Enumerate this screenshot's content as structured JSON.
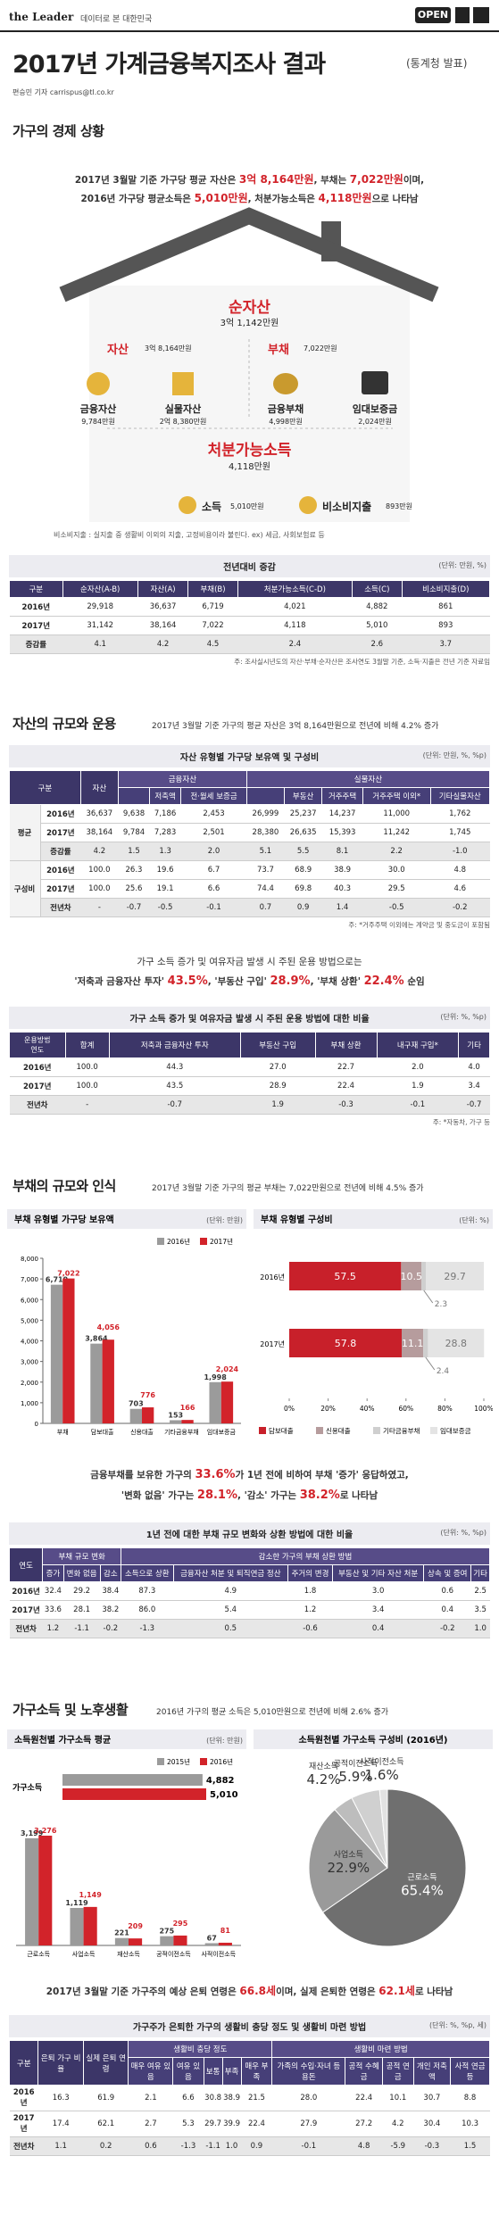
{
  "header": {
    "brand": "the Leader",
    "tagline": "데이터로 본 대한민국",
    "badge": "OPEN",
    "title": "2017년 가계금융복지조사 결과",
    "source": "(통계청 발표)",
    "byline": "편승민 기자 carrispus@tl.co.kr"
  },
  "s1": {
    "heading": "가구의 경제 상황",
    "summary": [
      [
        {
          "t": "2017년 3월말 기준 가구당 평균 자산은 "
        },
        {
          "t": "3억 8,164만원",
          "em": true
        },
        {
          "t": ", 부채는 "
        },
        {
          "t": "7,022만원",
          "em": true
        },
        {
          "t": "이며,"
        }
      ],
      [
        {
          "t": "2016년 가구당 평균소득은 "
        },
        {
          "t": "5,010만원",
          "em": true
        },
        {
          "t": ", 처분가능소득은 "
        },
        {
          "t": "4,118만원",
          "em": true
        },
        {
          "t": "으로 나타남"
        }
      ]
    ],
    "house": {
      "net": {
        "label": "순자산",
        "value": "3억 1,142만원"
      },
      "assets": {
        "label": "자산",
        "value": "3억 8,164만원",
        "items": [
          {
            "label": "금융자산",
            "value": "9,784만원"
          },
          {
            "label": "실물자산",
            "value": "2억 8,380만원"
          }
        ]
      },
      "debt": {
        "label": "부채",
        "value": "7,022만원",
        "items": [
          {
            "label": "금융부채",
            "value": "4,998만원"
          },
          {
            "label": "임대보증금",
            "value": "2,024만원"
          }
        ]
      },
      "disposable": {
        "label": "처분가능소득",
        "value": "4,118만원"
      },
      "income": {
        "label": "소득",
        "value": "5,010만원"
      },
      "nonconsumption": {
        "label": "비소비지출",
        "value": "893만원"
      }
    },
    "note": "비소비지출 : 실지출 중 생활비 이외의 지출, 고정비용이라 불린다. ex) 세금, 사회보험료 등",
    "table": {
      "title": "전년대비 증감",
      "unit": "(단위: 만원, %)",
      "columns": [
        "구분",
        "순자산(A-B)",
        "자산(A)",
        "부채(B)",
        "처분가능소득(C-D)",
        "소득(C)",
        "비소비지출(D)"
      ],
      "rows": [
        {
          "label": "2016년",
          "values": [
            "29,918",
            "36,637",
            "6,719",
            "4,021",
            "4,882",
            "861"
          ]
        },
        {
          "label": "2017년",
          "values": [
            "31,142",
            "38,164",
            "7,022",
            "4,118",
            "5,010",
            "893"
          ]
        },
        {
          "label": "증감률",
          "values": [
            "4.1",
            "4.2",
            "4.5",
            "2.4",
            "2.6",
            "3.7"
          ]
        }
      ],
      "note": "주: 조사실시년도의 자산·부채·순자산은 조사연도 3월말 기준, 소득·지출은 전년 기준 자료임"
    }
  },
  "s2": {
    "heading": "자산의 규모와 운용",
    "lead": "2017년 3월말 기준 가구의 평균 자산은 3억 8,164만원으로 전년에 비해 4.2% 증가",
    "table": {
      "title": "자산 유형별 가구당 보유액 및 구성비",
      "unit": "(단위: 만원, %, %p)",
      "columns": [
        "구분",
        "자산",
        {
          "group": "금융자산",
          "with_total": true,
          "items": [
            "저축액",
            "전·월세 보증금"
          ]
        },
        {
          "group": "실물자산",
          "with_total": true,
          "items": [
            "부동산",
            "거주주택",
            "거주주택 이외*",
            "기타실물자산"
          ]
        }
      ],
      "sections": [
        {
          "name": "평균",
          "rows": [
            {
              "label": "2016년",
              "values": [
                "36,637",
                "9,638",
                "7,186",
                "2,453",
                "26,999",
                "25,237",
                "14,237",
                "11,000",
                "1,762"
              ]
            },
            {
              "label": "2017년",
              "values": [
                "38,164",
                "9,784",
                "7,283",
                "2,501",
                "28,380",
                "26,635",
                "15,393",
                "11,242",
                "1,745"
              ]
            },
            {
              "label": "증감률",
              "values": [
                "4.2",
                "1.5",
                "1.3",
                "2.0",
                "5.1",
                "5.5",
                "8.1",
                "2.2",
                "-1.0"
              ]
            }
          ]
        },
        {
          "name": "구성비",
          "rows": [
            {
              "label": "2016년",
              "values": [
                "100.0",
                "26.3",
                "19.6",
                "6.7",
                "73.7",
                "68.9",
                "38.9",
                "30.0",
                "4.8"
              ]
            },
            {
              "label": "2017년",
              "values": [
                "100.0",
                "25.6",
                "19.1",
                "6.6",
                "74.4",
                "69.8",
                "40.3",
                "29.5",
                "4.6"
              ]
            },
            {
              "label": "전년차",
              "values": [
                "-",
                "-0.7",
                "-0.5",
                "-0.1",
                "0.7",
                "0.9",
                "1.4",
                "-0.5",
                "-0.2"
              ]
            }
          ]
        }
      ],
      "note": "주: *거주주택 이외에는 계약금 및 중도금이 포함됨"
    },
    "text": [
      [
        {
          "t": "가구 소득 증가 및 여유자금 발생 시 주된 운용 방법으로는"
        }
      ],
      [
        {
          "t": "'저축과 금융자산 투자' "
        },
        {
          "t": "43.5%",
          "em": true
        },
        {
          "t": ", '부동산 구입' "
        },
        {
          "t": "28.9%",
          "em": true
        },
        {
          "t": ", '부채 상환' "
        },
        {
          "t": "22.4%",
          "em": true
        },
        {
          "t": " 순임"
        }
      ]
    ],
    "table2": {
      "title": "가구 소득 증가 및 여유자금 발생 시 주된 운용 방법에 대한 비율",
      "unit": "(단위: %, %p)",
      "columns": [
        {
          "corner": [
            "운용방법",
            "연도"
          ]
        },
        "합계",
        "저축과 금융자산 투자",
        "부동산 구입",
        "부채 상환",
        "내구재 구입*",
        "기타"
      ],
      "rows": [
        {
          "label": "2016년",
          "values": [
            "100.0",
            "44.3",
            "27.0",
            "22.7",
            "2.0",
            "4.0"
          ]
        },
        {
          "label": "2017년",
          "values": [
            "100.0",
            "43.5",
            "28.9",
            "22.4",
            "1.9",
            "3.4"
          ]
        },
        {
          "label": "전년차",
          "values": [
            "-",
            "-0.7",
            "1.9",
            "-0.3",
            "-0.1",
            "-0.7"
          ]
        }
      ],
      "note": "주: *자동차, 가구 등"
    }
  },
  "s3": {
    "heading": "부채의 규모와 인식",
    "lead": "2017년 3월말 기준 가구의 평균 부채는 7,022만원으로 전년에 비해 4.5% 증가",
    "debt_chart": {
      "type": "bar",
      "title": "부채 유형별 가구당 보유액",
      "unit": "(단위: 만원)",
      "categories": [
        "부채",
        "담보대출",
        "신용대출",
        "기타금융부채",
        "임대보증금"
      ],
      "series": [
        {
          "name": "2016년",
          "color": "#9b9b9b",
          "values": [
            6719,
            3864,
            703,
            153,
            1998
          ],
          "value_labels": [
            "6,719",
            "3,864",
            "703",
            "153",
            "1,998"
          ]
        },
        {
          "name": "2017년",
          "color": "#d2232a",
          "values": [
            7022,
            4056,
            776,
            166,
            2024
          ],
          "value_labels": [
            "7,022",
            "4,056",
            "776",
            "166",
            "2,024"
          ]
        }
      ],
      "ylim": [
        0,
        8000
      ],
      "yticks": [
        0,
        {
          "value": 1000,
          "label": "1,000"
        },
        {
          "value": 2000,
          "label": "2,000"
        },
        {
          "value": 3000,
          "label": "3,000"
        },
        {
          "value": 4000,
          "label": "4,000"
        },
        {
          "value": 5000,
          "label": "5,000"
        },
        {
          "value": 6000,
          "label": "6,000"
        },
        {
          "value": 7000,
          "label": "7,000"
        },
        {
          "value": 8000,
          "label": "8,000"
        }
      ]
    },
    "share_chart": {
      "type": "stacked-bar",
      "title": "부채 유형별 구성비",
      "unit": "(단위: %)",
      "categories": [
        "2016년",
        "2017년"
      ],
      "series": [
        {
          "name": "담보대출",
          "color": "#c8202a",
          "values": [
            57.5,
            57.8
          ]
        },
        {
          "name": "신용대출",
          "color": "#b69c9d",
          "values": [
            10.5,
            11.1
          ]
        },
        {
          "name": "기타금융부채",
          "color": "#cfcfcf",
          "values": [
            2.3,
            2.4
          ]
        },
        {
          "name": "임대보증금",
          "color": "#e4e4e4",
          "values": [
            29.7,
            28.8
          ]
        }
      ],
      "xlim": [
        0,
        100
      ],
      "xticks": [
        {
          "value": 0,
          "label": "0%"
        },
        {
          "value": 20,
          "label": "20%"
        },
        {
          "value": 40,
          "label": "40%"
        },
        {
          "value": 60,
          "label": "60%"
        },
        {
          "value": 80,
          "label": "80%"
        },
        {
          "value": 100,
          "label": "100%"
        }
      ]
    },
    "text": [
      [
        {
          "t": "금융부채를 보유한 가구의 "
        },
        {
          "t": "33.6%",
          "em": true
        },
        {
          "t": "가 1년 전에 비하여 부채 '증가' 응답하였고,"
        }
      ],
      [
        {
          "t": "'변화 없음' 가구는 "
        },
        {
          "t": "28.1%",
          "em": true
        },
        {
          "t": ", '감소' 가구는 "
        },
        {
          "t": "38.2%",
          "em": true
        },
        {
          "t": "로 나타남"
        }
      ]
    ],
    "table": {
      "title": "1년 전에 대한 부채 규모 변화와 상환 방법에 대한 비율",
      "unit": "(단위: %, %p)",
      "columns": [
        "연도",
        {
          "group": "부채 규모 변화",
          "items": [
            "증가",
            "변화 없음",
            "감소"
          ]
        },
        {
          "group": "감소한 가구의 부채 상환 방법",
          "items": [
            "소득으로 상환",
            "금융자산 처분 및 퇴직연금 정산",
            "주거의 변경",
            "부동산 및 기타 자산 처분",
            "상속 및 증여",
            "기타"
          ]
        }
      ],
      "rows": [
        {
          "label": "2016년",
          "values": [
            "32.4",
            "29.2",
            "38.4",
            "87.3",
            "4.9",
            "1.8",
            "3.0",
            "0.6",
            "2.5"
          ]
        },
        {
          "label": "2017년",
          "values": [
            "33.6",
            "28.1",
            "38.2",
            "86.0",
            "5.4",
            "1.2",
            "3.4",
            "0.4",
            "3.5"
          ]
        },
        {
          "label": "전년차",
          "values": [
            "1.2",
            "-1.1",
            "-0.2",
            "-1.3",
            "0.5",
            "-0.6",
            "0.4",
            "-0.2",
            "1.0"
          ]
        }
      ]
    }
  },
  "s4": {
    "heading": "가구소득 및 노후생활",
    "lead": "2016년 가구의 평균 소득은 5,010만원으로 전년에 비해 2.6% 증가",
    "income_chart": {
      "type": "bar",
      "title": "소득원천별 가구소득 평균",
      "unit": "(단위: 만원)",
      "total": {
        "category": "가구소득",
        "values": [
          4882,
          5010
        ],
        "value_labels": [
          "4,882",
          "5,010"
        ]
      },
      "categories": [
        "근로소득",
        "사업소득",
        "재산소득",
        "공적이전소득",
        "사적이전소득"
      ],
      "series": [
        {
          "name": "2015년",
          "color": "#9b9b9b",
          "values": [
            3199,
            1119,
            221,
            275,
            67
          ],
          "value_labels": [
            "3,199",
            "1,119",
            "221",
            "275",
            "67"
          ]
        },
        {
          "name": "2016년",
          "color": "#d2232a",
          "values": [
            3276,
            1149,
            209,
            295,
            81
          ],
          "value_labels": [
            "3,276",
            "1,149",
            "209",
            "295",
            "81"
          ]
        }
      ]
    },
    "share_chart": {
      "type": "pie",
      "title": "소득원천별 가구소득 구성비 (2016년)",
      "categories": [
        "근로소득",
        "사업소득",
        "재산소득",
        "공적이전소득",
        "사적이전소득"
      ],
      "values": [
        65.4,
        22.9,
        4.2,
        5.9,
        1.6
      ],
      "value_labels": [
        "65.4%",
        "22.9%",
        "4.2%",
        "5.9%",
        "1.6%"
      ],
      "colors": [
        "#6f6f6f",
        "#9a9a9a",
        "#bdbdbd",
        "#d0d0d0",
        "#e2e2e2"
      ]
    },
    "text": [
      [
        {
          "t": "2017년 3월말 기준 가구주의 예상 은퇴 연령은 "
        },
        {
          "t": "66.8세",
          "em": true
        },
        {
          "t": "이며, 실제 은퇴한 연령은 "
        },
        {
          "t": "62.1세",
          "em": true
        },
        {
          "t": "로 나타남"
        }
      ]
    ],
    "table": {
      "title": "가구주가 은퇴한 가구의 생활비 충당 정도 및 생활비 마련 방법",
      "unit": "(단위: %, %p, 세)",
      "columns": [
        "구분",
        "은퇴 가구 비율",
        "실제 은퇴 연령",
        {
          "group": "생활비 충당 정도",
          "items": [
            "매우 여유 있음",
            "여유 있음",
            "보통",
            "부족",
            "매우 부족"
          ]
        },
        {
          "group": "생활비 마련 방법",
          "items": [
            "가족의 수입·자녀 등 용돈",
            "공적 수혜금",
            "공적 연금",
            "개인 저축액",
            "사적 연금 등"
          ]
        }
      ],
      "rows": [
        {
          "label": "2016년",
          "values": [
            "16.3",
            "61.9",
            "2.1",
            "6.6",
            "30.8",
            "38.9",
            "21.5",
            "28.0",
            "22.4",
            "10.1",
            "30.7",
            "8.8"
          ]
        },
        {
          "label": "2017년",
          "values": [
            "17.4",
            "62.1",
            "2.7",
            "5.3",
            "29.7",
            "39.9",
            "22.4",
            "27.9",
            "27.2",
            "4.2",
            "30.4",
            "10.3"
          ]
        },
        {
          "label": "전년차",
          "values": [
            "1.1",
            "0.2",
            "0.6",
            "-1.3",
            "-1.1",
            "1.0",
            "0.9",
            "-0.1",
            "4.8",
            "-5.9",
            "-0.3",
            "1.5"
          ]
        }
      ]
    }
  }
}
